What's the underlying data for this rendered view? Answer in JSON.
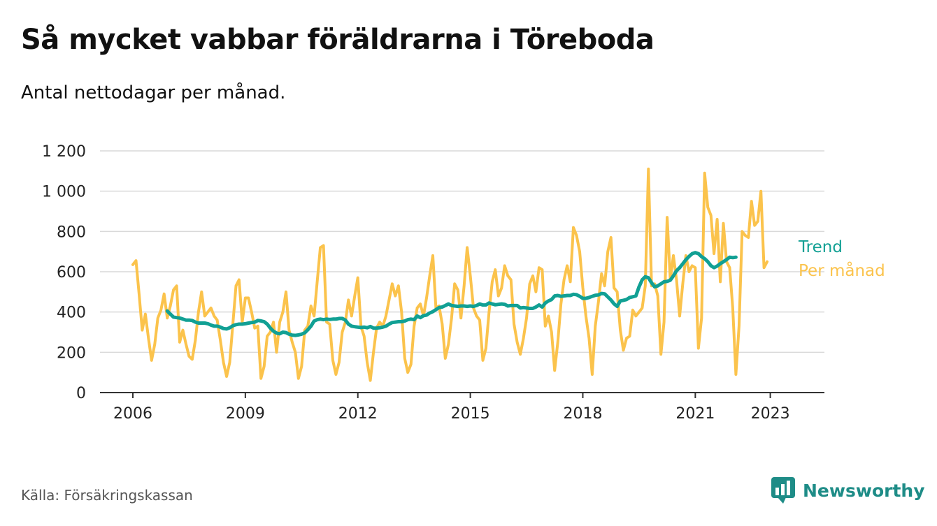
{
  "title": "Så mycket vabbar föräldrarna i Töreboda",
  "subtitle": "Antal nettodagar per månad.",
  "source": "Källa: Försäkringskassan",
  "brand": "Newsworthy",
  "colors": {
    "monthly": "#fbc34c",
    "trend": "#11a094",
    "grid": "#d9d9d9",
    "axis": "#333333",
    "brand": "#1e8c87"
  },
  "chart_data": {
    "type": "line",
    "ylim": [
      0,
      1200
    ],
    "y_ticks": [
      0,
      200,
      400,
      600,
      800,
      1000,
      1200
    ],
    "y_tick_labels": [
      "0",
      "200",
      "400",
      "600",
      "800",
      "1 000",
      "1 200"
    ],
    "x_ticks": [
      2006,
      2009,
      2012,
      2015,
      2018,
      2021,
      2023
    ],
    "x_tick_labels": [
      "2006",
      "2009",
      "2012",
      "2015",
      "2018",
      "2021",
      "2023"
    ],
    "grid": true,
    "legend": "inline-right",
    "series": [
      {
        "name": "Per månad",
        "start": 2006.0,
        "step": 0.08333,
        "values": [
          635,
          655,
          490,
          310,
          390,
          270,
          160,
          240,
          370,
          410,
          490,
          370,
          430,
          510,
          530,
          250,
          310,
          240,
          180,
          165,
          260,
          400,
          500,
          380,
          400,
          420,
          380,
          360,
          260,
          150,
          80,
          150,
          340,
          530,
          560,
          350,
          470,
          470,
          400,
          320,
          330,
          70,
          130,
          280,
          300,
          350,
          200,
          350,
          400,
          500,
          310,
          250,
          200,
          70,
          130,
          310,
          330,
          430,
          380,
          550,
          720,
          730,
          350,
          340,
          160,
          90,
          150,
          300,
          350,
          460,
          380,
          480,
          570,
          330,
          280,
          150,
          60,
          200,
          320,
          350,
          330,
          380,
          460,
          540,
          480,
          530,
          400,
          170,
          100,
          140,
          330,
          420,
          440,
          380,
          470,
          580,
          680,
          420,
          430,
          340,
          170,
          240,
          370,
          540,
          510,
          370,
          530,
          720,
          580,
          420,
          380,
          360,
          160,
          220,
          400,
          550,
          610,
          480,
          520,
          630,
          580,
          560,
          340,
          250,
          190,
          270,
          370,
          540,
          580,
          500,
          620,
          610,
          330,
          380,
          300,
          110,
          250,
          440,
          560,
          630,
          550,
          820,
          780,
          700,
          520,
          380,
          270,
          90,
          330,
          450,
          590,
          530,
          700,
          770,
          520,
          500,
          310,
          210,
          270,
          280,
          410,
          380,
          400,
          420,
          530,
          1110,
          530,
          540,
          480,
          190,
          350,
          870,
          560,
          680,
          560,
          380,
          540,
          680,
          600,
          630,
          620,
          220,
          370,
          1090,
          920,
          880,
          690,
          860,
          550,
          840,
          650,
          620,
          420,
          90,
          330,
          800,
          780,
          770,
          950,
          830,
          850,
          1000,
          620,
          650
        ]
      },
      {
        "name": "Trend",
        "start": 2006.917,
        "step": 0.08333,
        "values": [
          405,
          390,
          375,
          372,
          370,
          365,
          360,
          360,
          358,
          350,
          345,
          345,
          345,
          342,
          335,
          330,
          330,
          325,
          318,
          316,
          322,
          332,
          337,
          340,
          340,
          342,
          345,
          348,
          350,
          358,
          356,
          352,
          340,
          320,
          305,
          295,
          292,
          300,
          298,
          290,
          285,
          284,
          286,
          290,
          297,
          312,
          330,
          355,
          362,
          365,
          362,
          365,
          363,
          365,
          365,
          368,
          368,
          360,
          340,
          330,
          327,
          325,
          323,
          325,
          322,
          328,
          320,
          320,
          322,
          325,
          330,
          340,
          348,
          350,
          352,
          352,
          355,
          362,
          365,
          362,
          380,
          372,
          382,
          385,
          395,
          402,
          412,
          422,
          425,
          432,
          440,
          432,
          430,
          428,
          430,
          430,
          428,
          430,
          428,
          432,
          440,
          435,
          435,
          445,
          440,
          436,
          438,
          440,
          438,
          430,
          432,
          432,
          432,
          420,
          422,
          420,
          418,
          418,
          425,
          435,
          425,
          445,
          455,
          462,
          480,
          482,
          478,
          480,
          482,
          482,
          488,
          486,
          478,
          468,
          468,
          472,
          478,
          483,
          485,
          492,
          490,
          475,
          460,
          440,
          428,
          455,
          458,
          462,
          472,
          476,
          480,
          525,
          560,
          575,
          570,
          545,
          525,
          530,
          540,
          550,
          552,
          558,
          580,
          605,
          620,
          640,
          660,
          676,
          690,
          695,
          690,
          675,
          665,
          650,
          630,
          620,
          628,
          640,
          650,
          660,
          672,
          670,
          672
        ]
      }
    ]
  }
}
